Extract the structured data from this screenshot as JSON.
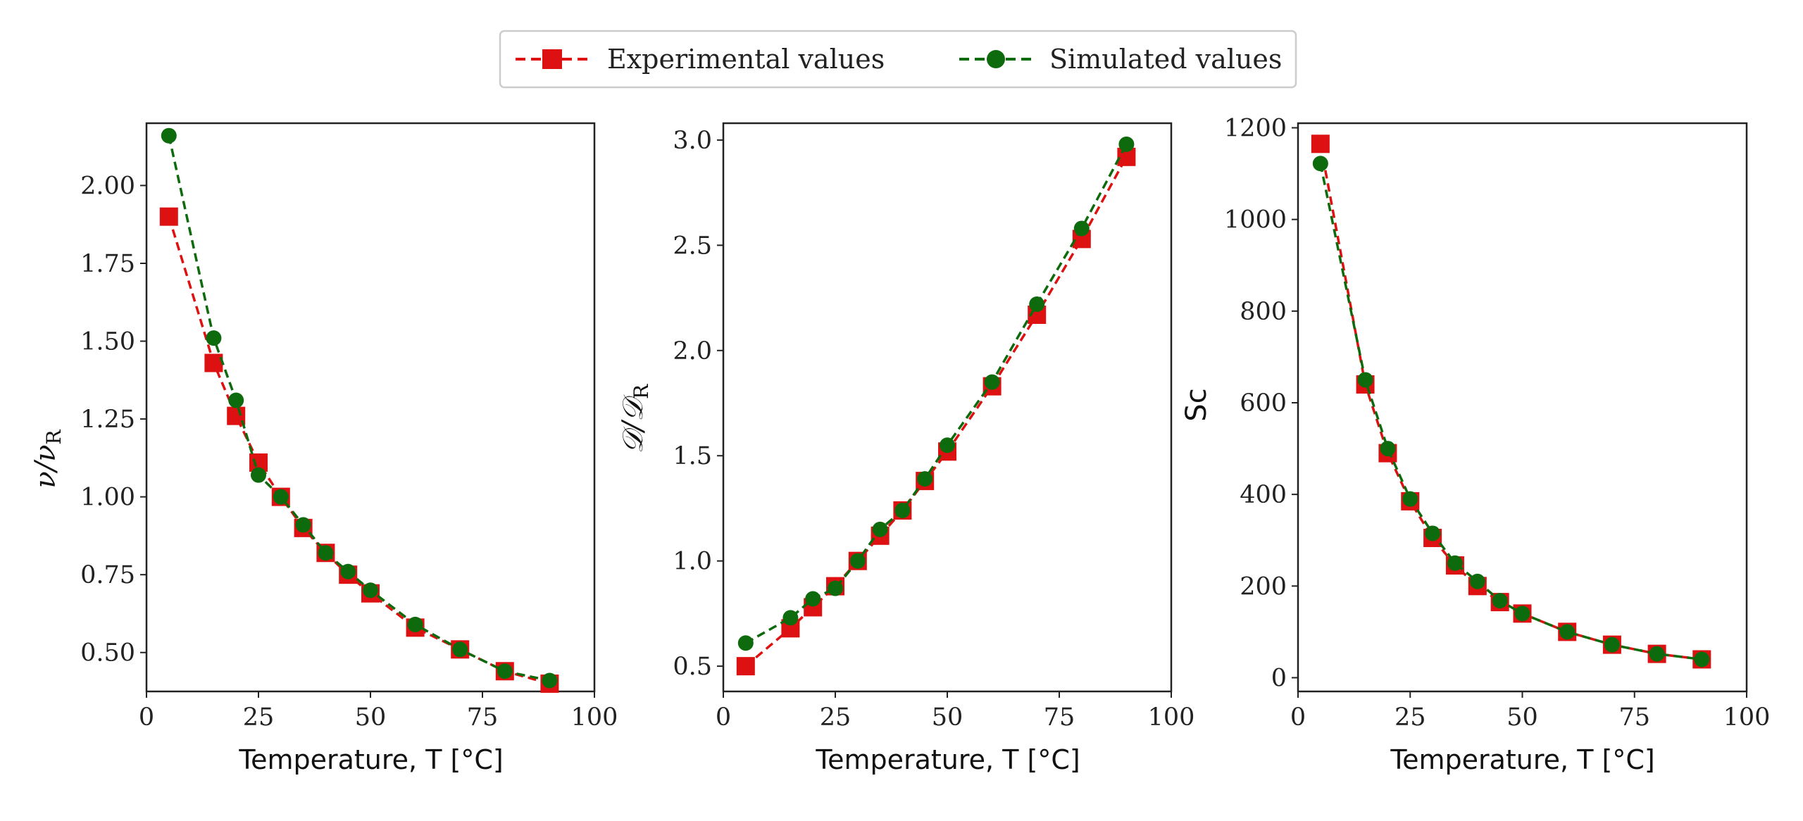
{
  "colors": {
    "experimental": "#dd1111",
    "simulated": "#0d6b0d",
    "axis": "#222222"
  },
  "legend": {
    "experimental_label": "Experimental values",
    "simulated_label": "Simulated values"
  },
  "chart_data": [
    {
      "type": "line",
      "ylabel_main": "ν/ν",
      "ylabel_sub": "R",
      "xlabel": "Temperature, T [°C]",
      "xlim": [
        0,
        100
      ],
      "ylim": [
        0.375,
        2.2
      ],
      "xticks": [
        0,
        25,
        50,
        75,
        100
      ],
      "xtick_labels": [
        "0",
        "25",
        "50",
        "75",
        "100"
      ],
      "yticks": [
        0.5,
        0.75,
        1.0,
        1.25,
        1.5,
        1.75,
        2.0
      ],
      "ytick_labels": [
        "0.50",
        "0.75",
        "1.00",
        "1.25",
        "1.50",
        "1.75",
        "2.00"
      ],
      "x": [
        5,
        15,
        20,
        25,
        30,
        35,
        40,
        45,
        50,
        60,
        70,
        80,
        90
      ],
      "series": [
        {
          "name": "Experimental values",
          "marker": "square",
          "values": [
            1.9,
            1.43,
            1.26,
            1.11,
            1.0,
            0.9,
            0.82,
            0.75,
            0.69,
            0.58,
            0.51,
            0.44,
            0.4
          ]
        },
        {
          "name": "Simulated values",
          "marker": "circle",
          "values": [
            2.16,
            1.51,
            1.31,
            1.07,
            1.0,
            0.91,
            0.82,
            0.76,
            0.7,
            0.59,
            0.51,
            0.44,
            0.41
          ]
        }
      ]
    },
    {
      "type": "line",
      "ylabel_main": "𝒟/𝒟",
      "ylabel_sub": "R",
      "xlabel": "Temperature, T [°C]",
      "xlim": [
        0,
        100
      ],
      "ylim": [
        0.38,
        3.08
      ],
      "xticks": [
        0,
        25,
        50,
        75,
        100
      ],
      "xtick_labels": [
        "0",
        "25",
        "50",
        "75",
        "100"
      ],
      "yticks": [
        0.5,
        1.0,
        1.5,
        2.0,
        2.5,
        3.0
      ],
      "ytick_labels": [
        "0.5",
        "1.0",
        "1.5",
        "2.0",
        "2.5",
        "3.0"
      ],
      "x": [
        5,
        15,
        20,
        25,
        30,
        35,
        40,
        45,
        50,
        60,
        70,
        80,
        90
      ],
      "series": [
        {
          "name": "Experimental values",
          "marker": "square",
          "values": [
            0.5,
            0.68,
            0.78,
            0.88,
            1.0,
            1.12,
            1.24,
            1.38,
            1.52,
            1.83,
            2.17,
            2.53,
            2.92
          ]
        },
        {
          "name": "Simulated values",
          "marker": "circle",
          "values": [
            0.61,
            0.73,
            0.82,
            0.87,
            1.0,
            1.15,
            1.24,
            1.39,
            1.55,
            1.85,
            2.22,
            2.58,
            2.98
          ]
        }
      ]
    },
    {
      "type": "line",
      "ylabel_main": "Sc",
      "ylabel_sub": "",
      "xlabel": "Temperature, T [°C]",
      "xlim": [
        0,
        100
      ],
      "ylim": [
        -30,
        1210
      ],
      "xticks": [
        0,
        25,
        50,
        75,
        100
      ],
      "xtick_labels": [
        "0",
        "25",
        "50",
        "75",
        "100"
      ],
      "yticks": [
        0,
        200,
        400,
        600,
        800,
        1000,
        1200
      ],
      "ytick_labels": [
        "0",
        "200",
        "400",
        "600",
        "800",
        "1000",
        "1200"
      ],
      "x": [
        5,
        15,
        20,
        25,
        30,
        35,
        40,
        45,
        50,
        60,
        70,
        80,
        90
      ],
      "series": [
        {
          "name": "Experimental values",
          "marker": "square",
          "values": [
            1165,
            640,
            490,
            385,
            305,
            245,
            200,
            165,
            140,
            100,
            72,
            52,
            40
          ]
        },
        {
          "name": "Simulated values",
          "marker": "circle",
          "values": [
            1122,
            650,
            500,
            390,
            315,
            250,
            210,
            168,
            140,
            100,
            72,
            52,
            40
          ]
        }
      ]
    }
  ]
}
